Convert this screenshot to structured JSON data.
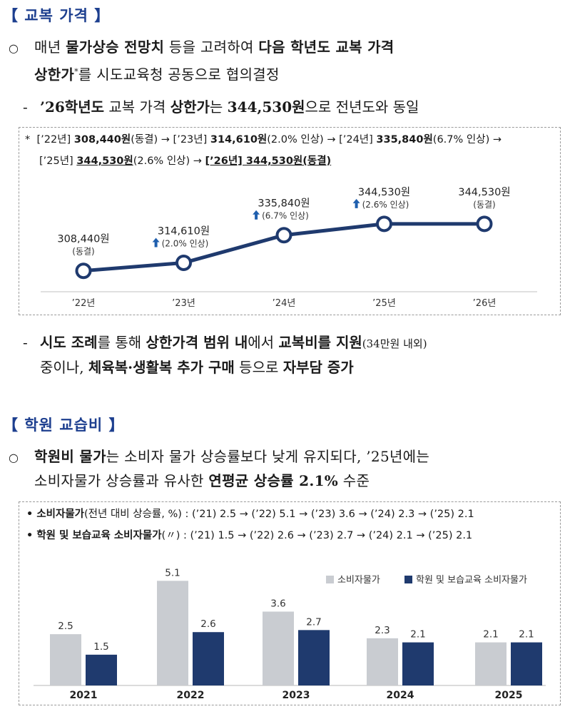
{
  "section1": {
    "title": "【 교복 가격 】",
    "para1": {
      "bullet": "○",
      "line1_a": "매년 ",
      "line1_b": "물가상승 전망치",
      "line1_c": " 등을 고려하여 ",
      "line1_d": "다음 학년도 교복 가격",
      "line2_a": "상한가",
      "line2_sup": "*",
      "line2_b": "를 시도교육청 공동으로 협의결정"
    },
    "dash1": {
      "mark": "-",
      "a": "’26학년도",
      "b": " 교복 가격 ",
      "c": "상한가",
      "d": "는 ",
      "e": "344,530원",
      "f": "으로 전년도와 동일"
    },
    "note": {
      "star": "*",
      "l1_a": "[’22년] ",
      "l1_b": "308,440원",
      "l1_c": "(동결) → [’23년] ",
      "l1_d": "314,610원",
      "l1_e": "(2.0% 인상) → [’24년] ",
      "l1_f": "335,840원",
      "l1_g": "(6.7% 인상) →",
      "l2_a": "[’25년] ",
      "l2_b": "344,530원",
      "l2_c": "(2.6% 인상) → ",
      "l2_d": "[’26년] 344,530원(동결)"
    },
    "dash2": {
      "mark": "-",
      "l1_a": "시도 조례",
      "l1_b": "를 통해 ",
      "l1_c": "상한가격 범위 내",
      "l1_d": "에서 ",
      "l1_e": "교복비를 지원",
      "l1_f": "(34만원 내외)",
      "l2_a": "중이나, ",
      "l2_b": "체육복·생활복 추가 구매",
      "l2_c": " 등으로 ",
      "l2_d": "자부담 증가"
    }
  },
  "section2": {
    "title": "【 학원 교습비 】",
    "para1": {
      "bullet": "○",
      "l1_a": "학원비 물가",
      "l1_b": "는 소비자 물가 상승률보다 낮게 유지되다, ’25년에는",
      "l2_a": "소비자물가 상승률과 유사한 ",
      "l2_b": "연평균 상승률 2.1%",
      "l2_c": " 수준"
    },
    "note": {
      "l1_a": "• 소비자물가",
      "l1_b": "(전년 대비 상승률, %) : (’21) 2.5 → (’22) 5.1 → (’23) 3.6 → (’24) 2.3 → (’25) 2.1",
      "l2_a": "• 학원 및 보습교육 소비자물가",
      "l2_b": "(〃) : (’21) 1.5 → (’22) 2.6 → (’23) 2.7 → (’24) 2.1 → (’25) 2.1"
    }
  },
  "colors": {
    "title": "#1d3f8f",
    "line": "#1f3a6e",
    "bar_gray": "#c9ccd1",
    "bar_navy": "#1f3a6e",
    "arrow": "#1f5fae"
  },
  "chart_data": [
    {
      "type": "line",
      "title": "",
      "categories": [
        "’22년",
        "’23년",
        "’24년",
        "’25년",
        "’26년"
      ],
      "values": [
        308440,
        314610,
        335840,
        344530,
        344530
      ],
      "value_labels": [
        "308,440원",
        "314,610원",
        "335,840원",
        "344,530원",
        "344,530원"
      ],
      "change_labels": [
        "(동결)",
        "(2.0% 인상)",
        "(6.7% 인상)",
        "(2.6% 인상)",
        "(동결)"
      ],
      "up_arrow": [
        false,
        true,
        true,
        true,
        false
      ],
      "ylim": [
        300000,
        350000
      ],
      "xlabel": "",
      "ylabel": ""
    },
    {
      "type": "bar",
      "title": "",
      "categories": [
        "2021",
        "2022",
        "2023",
        "2024",
        "2025"
      ],
      "series": [
        {
          "name": "소비자물가",
          "values": [
            2.5,
            5.1,
            3.6,
            2.3,
            2.1
          ]
        },
        {
          "name": "학원 및 보습교육 소비자물가",
          "values": [
            1.5,
            2.6,
            2.7,
            2.1,
            2.1
          ]
        }
      ],
      "ylim": [
        0,
        5.5
      ],
      "legend": "top-right",
      "xlabel": "",
      "ylabel": ""
    }
  ]
}
